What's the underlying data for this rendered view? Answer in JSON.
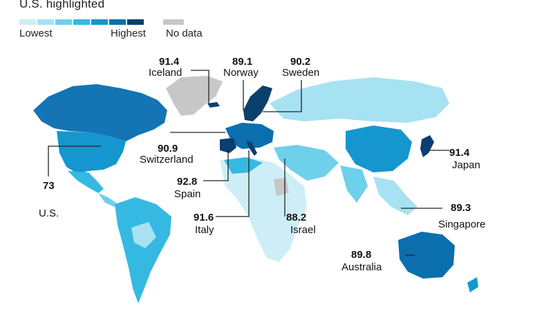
{
  "header": {
    "subtitle": "U.S. highlighted"
  },
  "legend": {
    "low_label": "Lowest",
    "high_label": "Highest",
    "nodata_label": "No data",
    "scale_colors": [
      "#cdeef6",
      "#a6e2f2",
      "#6fd0ec",
      "#35b9e3",
      "#1596cf",
      "#0b6fad",
      "#0a3f6e"
    ],
    "nodata_color": "#c7c7c7"
  },
  "callouts": [
    {
      "id": "iceland",
      "value": "91.4",
      "name": "Iceland"
    },
    {
      "id": "norway",
      "value": "89.1",
      "name": "Norway"
    },
    {
      "id": "sweden",
      "value": "90.2",
      "name": "Sweden"
    },
    {
      "id": "switzerland",
      "value": "90.9",
      "name": "Switzerland"
    },
    {
      "id": "japan",
      "value": "91.4",
      "name": "Japan"
    },
    {
      "id": "us",
      "value": "73",
      "name": "U.S."
    },
    {
      "id": "spain",
      "value": "92.8",
      "name": "Spain"
    },
    {
      "id": "singapore",
      "value": "89.3",
      "name": "Singapore"
    },
    {
      "id": "italy",
      "value": "91.6",
      "name": "Italy"
    },
    {
      "id": "israel",
      "value": "88.2",
      "name": "Israel"
    },
    {
      "id": "australia",
      "value": "89.8",
      "name": "Australia"
    }
  ]
}
